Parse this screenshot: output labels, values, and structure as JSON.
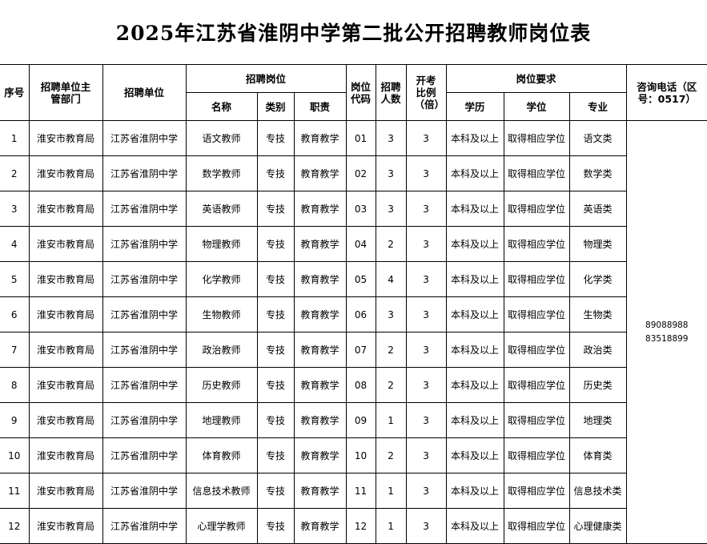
{
  "title": "2025年江苏省淮阴中学第二批公开招聘教师岗位表",
  "headers": {
    "seq": "序号",
    "dept": "招聘单位主管部门",
    "unit": "招聘单位",
    "position_group": "招聘岗位",
    "pos_name": "名称",
    "pos_type": "类别",
    "pos_duty": "职责",
    "code": "岗位代码",
    "count": "招聘人数",
    "ratio": "开考比例（倍）",
    "req_group": "岗位要求",
    "edu": "学历",
    "degree": "学位",
    "major": "专业",
    "contact": "咨询电话（区号：0517）"
  },
  "contact_phones": [
    "89088988",
    "83518899"
  ],
  "rows": [
    {
      "seq": "1",
      "dept": "淮安市教育局",
      "unit": "江苏省淮阴中学",
      "name": "语文教师",
      "type": "专技",
      "duty": "教育教学",
      "code": "01",
      "count": "3",
      "ratio": "3",
      "edu": "本科及以上",
      "degree": "取得相应学位",
      "major": "语文类"
    },
    {
      "seq": "2",
      "dept": "淮安市教育局",
      "unit": "江苏省淮阴中学",
      "name": "数学教师",
      "type": "专技",
      "duty": "教育教学",
      "code": "02",
      "count": "3",
      "ratio": "3",
      "edu": "本科及以上",
      "degree": "取得相应学位",
      "major": "数学类"
    },
    {
      "seq": "3",
      "dept": "淮安市教育局",
      "unit": "江苏省淮阴中学",
      "name": "英语教师",
      "type": "专技",
      "duty": "教育教学",
      "code": "03",
      "count": "3",
      "ratio": "3",
      "edu": "本科及以上",
      "degree": "取得相应学位",
      "major": "英语类"
    },
    {
      "seq": "4",
      "dept": "淮安市教育局",
      "unit": "江苏省淮阴中学",
      "name": "物理教师",
      "type": "专技",
      "duty": "教育教学",
      "code": "04",
      "count": "2",
      "ratio": "3",
      "edu": "本科及以上",
      "degree": "取得相应学位",
      "major": "物理类"
    },
    {
      "seq": "5",
      "dept": "淮安市教育局",
      "unit": "江苏省淮阴中学",
      "name": "化学教师",
      "type": "专技",
      "duty": "教育教学",
      "code": "05",
      "count": "4",
      "ratio": "3",
      "edu": "本科及以上",
      "degree": "取得相应学位",
      "major": "化学类"
    },
    {
      "seq": "6",
      "dept": "淮安市教育局",
      "unit": "江苏省淮阴中学",
      "name": "生物教师",
      "type": "专技",
      "duty": "教育教学",
      "code": "06",
      "count": "3",
      "ratio": "3",
      "edu": "本科及以上",
      "degree": "取得相应学位",
      "major": "生物类"
    },
    {
      "seq": "7",
      "dept": "淮安市教育局",
      "unit": "江苏省淮阴中学",
      "name": "政治教师",
      "type": "专技",
      "duty": "教育教学",
      "code": "07",
      "count": "2",
      "ratio": "3",
      "edu": "本科及以上",
      "degree": "取得相应学位",
      "major": "政治类"
    },
    {
      "seq": "8",
      "dept": "淮安市教育局",
      "unit": "江苏省淮阴中学",
      "name": "历史教师",
      "type": "专技",
      "duty": "教育教学",
      "code": "08",
      "count": "2",
      "ratio": "3",
      "edu": "本科及以上",
      "degree": "取得相应学位",
      "major": "历史类"
    },
    {
      "seq": "9",
      "dept": "淮安市教育局",
      "unit": "江苏省淮阴中学",
      "name": "地理教师",
      "type": "专技",
      "duty": "教育教学",
      "code": "09",
      "count": "1",
      "ratio": "3",
      "edu": "本科及以上",
      "degree": "取得相应学位",
      "major": "地理类"
    },
    {
      "seq": "10",
      "dept": "淮安市教育局",
      "unit": "江苏省淮阴中学",
      "name": "体育教师",
      "type": "专技",
      "duty": "教育教学",
      "code": "10",
      "count": "2",
      "ratio": "3",
      "edu": "本科及以上",
      "degree": "取得相应学位",
      "major": "体育类"
    },
    {
      "seq": "11",
      "dept": "淮安市教育局",
      "unit": "江苏省淮阴中学",
      "name": "信息技术教师",
      "type": "专技",
      "duty": "教育教学",
      "code": "11",
      "count": "1",
      "ratio": "3",
      "edu": "本科及以上",
      "degree": "取得相应学位",
      "major": "信息技术类"
    },
    {
      "seq": "12",
      "dept": "淮安市教育局",
      "unit": "江苏省淮阴中学",
      "name": "心理学教师",
      "type": "专技",
      "duty": "教育教学",
      "code": "12",
      "count": "1",
      "ratio": "3",
      "edu": "本科及以上",
      "degree": "取得相应学位",
      "major": "心理健康类"
    }
  ]
}
